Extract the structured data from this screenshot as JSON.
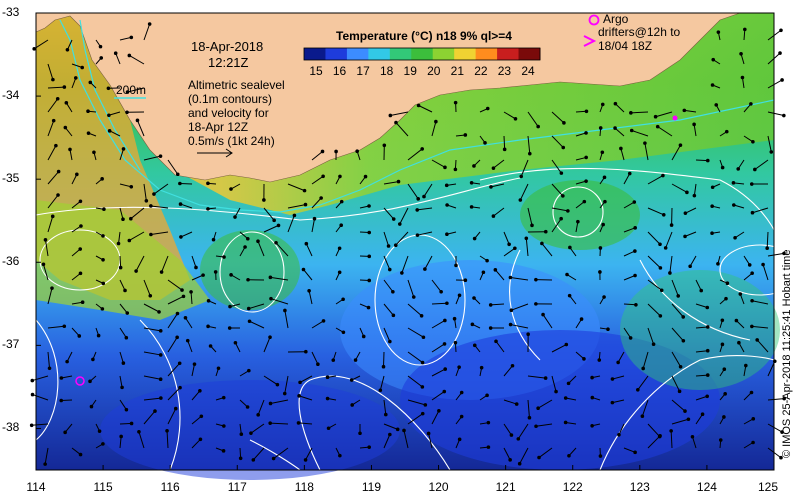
{
  "datetime": {
    "date": "18-Apr-2018",
    "time": "12:21Z"
  },
  "colorbar": {
    "title": "Temperature (°C) n18 9% ql>=4",
    "ticks": [
      "15",
      "16",
      "17",
      "18",
      "19",
      "20",
      "21",
      "22",
      "23",
      "24"
    ],
    "values": [
      15,
      16,
      17,
      18,
      19,
      20,
      21,
      22,
      23,
      24
    ],
    "colors": [
      "#0a1a8c",
      "#1e3cdc",
      "#3c8cff",
      "#32c8e6",
      "#32c878",
      "#3cbe3c",
      "#8cd232",
      "#f0d232",
      "#ff8c1e",
      "#c81e1e",
      "#7a0a0a"
    ]
  },
  "legend": {
    "contour_label": "200m",
    "description_lines": [
      "Altimetric sealevel",
      "(0.1m contours)",
      "and velocity for",
      "18-Apr 12Z",
      "0.5m/s (1kt 24h)"
    ]
  },
  "argo": {
    "symbol_label": "Argo",
    "drifter_lines": [
      "drifters@12h to",
      "18/04 18Z"
    ]
  },
  "axes": {
    "x_ticks": [
      "114",
      "115",
      "116",
      "117",
      "118",
      "119",
      "120",
      "121",
      "122",
      "123",
      "124",
      "125"
    ],
    "x_values": [
      114,
      115,
      116,
      117,
      118,
      119,
      120,
      121,
      122,
      123,
      124,
      125
    ],
    "y_ticks": [
      "-33",
      "-34",
      "-35",
      "-36",
      "-37",
      "-38"
    ],
    "y_values": [
      -33,
      -34,
      -35,
      -36,
      -37,
      -38
    ],
    "xlim": [
      114,
      125
    ],
    "ylim": [
      -38.5,
      -33
    ]
  },
  "credit": "© IMOS 25-Apr-2018 11:25:41 Hobart time",
  "colors": {
    "land": "#f5c8a0",
    "contour": "#ffffff",
    "isobath": "#40e0e0",
    "argo": "#ff00ff"
  }
}
